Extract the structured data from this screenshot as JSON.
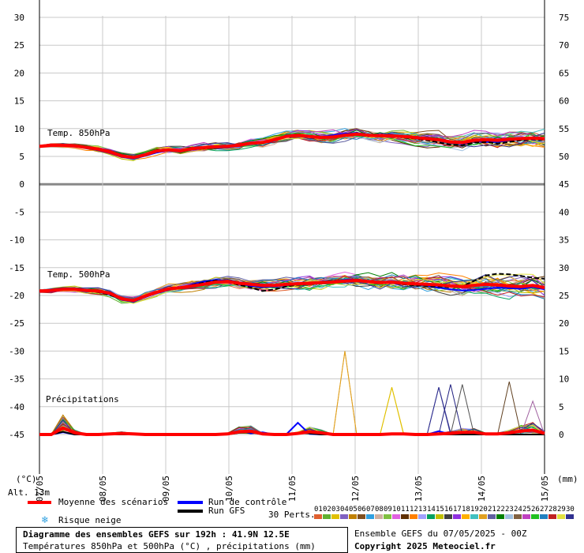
{
  "chart_data": {
    "type": "line",
    "title": "Diagramme des ensembles GEFS sur 192h : 41.9N 12.5E",
    "subtitle": "Températures 850hPa et 500hPa (°C) , précipitations (mm)",
    "left_unit": "(°C)",
    "right_unit": "(mm)",
    "altitude": "Alt. 13m",
    "left_ticks": [
      "30",
      "25",
      "20",
      "15",
      "10",
      "5",
      "0",
      "-5",
      "-10",
      "-15",
      "-20",
      "-25",
      "-30",
      "-35",
      "-40",
      "-45"
    ],
    "right_ticks": [
      "75",
      "70",
      "65",
      "60",
      "55",
      "50",
      "45",
      "40",
      "35",
      "30",
      "25",
      "20",
      "15",
      "10",
      "5",
      "0"
    ],
    "x_ticks": [
      "07/05",
      "08/05",
      "09/05",
      "10/05",
      "11/05",
      "12/05",
      "13/05",
      "14/05",
      "15/05"
    ],
    "panel_labels": {
      "t850": "Temp. 850hPa",
      "t500": "Temp. 500hPa",
      "precip": "Précipitations"
    },
    "t850_mean": [
      6.8,
      7.0,
      7.0,
      6.9,
      6.6,
      6.3,
      5.8,
      5.1,
      4.8,
      5.3,
      6.0,
      6.2,
      6.0,
      6.4,
      6.6,
      6.7,
      6.8,
      7.0,
      7.4,
      7.5,
      8.0,
      8.6,
      8.8,
      8.6,
      8.4,
      8.5,
      8.8,
      9.0,
      8.8,
      8.7,
      8.7,
      8.6,
      8.4,
      8.2,
      8.0,
      7.6,
      7.5,
      7.9,
      8.0,
      7.9,
      8.1,
      8.2,
      8.3,
      8.2
    ],
    "t850_control": [
      6.8,
      7.1,
      7.2,
      7.0,
      6.6,
      6.1,
      5.6,
      4.9,
      4.6,
      5.1,
      5.7,
      6.1,
      5.9,
      6.4,
      6.6,
      6.5,
      6.6,
      6.8,
      7.3,
      7.4,
      8.0,
      8.5,
      8.7,
      8.6,
      8.5,
      8.8,
      9.1,
      9.2,
      8.9,
      8.8,
      8.8,
      8.6,
      8.4,
      8.2,
      7.9,
      7.5,
      7.3,
      7.7,
      7.6,
      7.6,
      7.9,
      8.1,
      8.3,
      8.1
    ],
    "t850_gfs": [
      6.8,
      7.0,
      7.1,
      6.9,
      6.7,
      6.3,
      5.7,
      5.0,
      4.7,
      5.2,
      5.9,
      6.2,
      6.0,
      6.3,
      6.4,
      6.5,
      6.7,
      7.0,
      7.4,
      7.6,
      8.0,
      8.5,
      8.7,
      8.5,
      8.3,
      8.6,
      8.9,
      9.1,
      8.8,
      8.6,
      8.6,
      8.4,
      8.2,
      7.9,
      7.5,
      7.1,
      7.0,
      7.5,
      7.6,
      7.3,
      7.6,
      7.9,
      8.1,
      7.9
    ],
    "t500_mean": [
      -19.2,
      -19.1,
      -18.9,
      -18.9,
      -19.1,
      -19.2,
      -19.6,
      -20.6,
      -20.9,
      -20.1,
      -19.4,
      -18.8,
      -18.6,
      -18.3,
      -18.0,
      -17.6,
      -17.5,
      -17.8,
      -18.0,
      -18.2,
      -18.2,
      -18.0,
      -17.9,
      -17.8,
      -17.7,
      -17.6,
      -17.4,
      -17.3,
      -17.5,
      -17.7,
      -17.6,
      -17.8,
      -17.9,
      -18.0,
      -18.1,
      -18.3,
      -18.4,
      -18.2,
      -18.0,
      -18.1,
      -18.3,
      -18.4,
      -18.2,
      -18.6
    ],
    "t500_control": [
      -19.2,
      -19.3,
      -19.0,
      -18.8,
      -19.0,
      -19.3,
      -19.8,
      -20.8,
      -21.1,
      -20.3,
      -19.6,
      -19.0,
      -18.7,
      -18.0,
      -17.5,
      -17.2,
      -17.4,
      -17.9,
      -18.3,
      -18.5,
      -18.4,
      -18.2,
      -18.0,
      -17.9,
      -17.8,
      -17.5,
      -17.2,
      -17.1,
      -17.4,
      -17.6,
      -17.5,
      -17.8,
      -18.0,
      -18.3,
      -18.6,
      -18.9,
      -19.1,
      -19.0,
      -18.8,
      -18.6,
      -18.7,
      -18.8,
      -18.5,
      -18.9
    ],
    "t500_gfs": [
      -19.2,
      -19.2,
      -19.0,
      -18.9,
      -19.2,
      -19.4,
      -19.9,
      -20.7,
      -21.0,
      -20.2,
      -19.5,
      -18.9,
      -18.7,
      -18.1,
      -17.7,
      -17.3,
      -17.6,
      -18.1,
      -18.6,
      -19.2,
      -18.9,
      -18.4,
      -18.1,
      -17.9,
      -17.7,
      -17.5,
      -17.3,
      -17.2,
      -17.5,
      -17.8,
      -17.7,
      -18.0,
      -18.2,
      -18.3,
      -18.4,
      -18.5,
      -18.3,
      -17.4,
      -16.4,
      -16.1,
      -16.2,
      -16.5,
      -16.8,
      -17.0
    ],
    "precip_mean": [
      0.0,
      0.0,
      1.2,
      0.3,
      0.0,
      0.0,
      0.1,
      0.2,
      0.1,
      0.0,
      0.0,
      0.0,
      0.0,
      0.0,
      0.0,
      0.0,
      0.1,
      0.5,
      0.6,
      0.1,
      0.0,
      0.0,
      0.2,
      0.5,
      0.3,
      0.0,
      0.0,
      0.0,
      0.0,
      0.0,
      0.1,
      0.1,
      0.0,
      0.0,
      0.1,
      0.2,
      0.4,
      0.4,
      0.1,
      0.1,
      0.3,
      0.6,
      0.8,
      0.2
    ],
    "precip_control": [
      0.0,
      0.0,
      0.4,
      0.0,
      0.0,
      0.0,
      0.0,
      0.0,
      0.0,
      0.0,
      0.0,
      0.0,
      0.0,
      0.0,
      0.0,
      0.0,
      0.0,
      0.6,
      0.2,
      0.4,
      0.0,
      0.0,
      2.1,
      0.1,
      0.0,
      0.0,
      0.0,
      0.0,
      0.0,
      0.0,
      0.0,
      0.0,
      0.0,
      0.0,
      0.6,
      0.0,
      0.0,
      0.0,
      0.0,
      0.0,
      0.0,
      0.0,
      0.0,
      0.0
    ],
    "precip_gfs": [
      0.0,
      0.0,
      0.5,
      0.0,
      0.0,
      0.0,
      0.0,
      0.0,
      0.0,
      0.0,
      0.0,
      0.0,
      0.0,
      0.0,
      0.0,
      0.0,
      0.0,
      0.3,
      0.4,
      0.0,
      0.0,
      0.0,
      0.3,
      0.2,
      0.0,
      0.0,
      0.0,
      0.0,
      0.0,
      0.0,
      0.0,
      0.0,
      0.0,
      0.0,
      0.0,
      0.0,
      0.0,
      0.0,
      0.0,
      0.0,
      0.0,
      0.0,
      0.0,
      0.0
    ],
    "precip_spikes": [
      {
        "step": 2,
        "value": 3.5,
        "color": "#c08000"
      },
      {
        "step": 26,
        "value": 15.0,
        "color": "#e0a020"
      },
      {
        "step": 30,
        "value": 8.5,
        "color": "#e0c000"
      },
      {
        "step": 34,
        "value": 8.5,
        "color": "#303090"
      },
      {
        "step": 35,
        "value": 9.0,
        "color": "#202080"
      },
      {
        "step": 36,
        "value": 9.0,
        "color": "#505050"
      },
      {
        "step": 40,
        "value": 9.5,
        "color": "#604020"
      },
      {
        "step": 42,
        "value": 6.0,
        "color": "#a060a0"
      }
    ],
    "members": [
      "01",
      "02",
      "03",
      "04",
      "05",
      "06",
      "07",
      "08",
      "09",
      "10",
      "11",
      "12",
      "13",
      "14",
      "15",
      "16",
      "17",
      "18",
      "19",
      "20",
      "21",
      "22",
      "23",
      "24",
      "25",
      "26",
      "27",
      "28",
      "29",
      "30"
    ],
    "member_colors": [
      "#e06030",
      "#60b030",
      "#e0c000",
      "#8060c0",
      "#c08000",
      "#7f4f1f",
      "#30a0e0",
      "#d0b0a0",
      "#80c040",
      "#e060e0",
      "#603000",
      "#ff8000",
      "#a0a0ff",
      "#00a060",
      "#c0c000",
      "#404040",
      "#9030e0",
      "#ffb000",
      "#40c0c0",
      "#e0a020",
      "#6060a0",
      "#008000",
      "#a0c0e0",
      "#806040",
      "#c040c0",
      "#20c020",
      "#2080c0",
      "#c02020",
      "#e0e040",
      "#303090"
    ]
  },
  "legend": {
    "mean_label": "Moyenne des scénarios",
    "control_label": "Run de contrôle",
    "gfs_label": "Run GFS",
    "snow_label": "Risque neige",
    "perts_label": "30 Perts.",
    "run_info": "Ensemble GEFS du 07/05/2025 - 00Z",
    "copyright": "Copyright 2025 Meteociel.fr",
    "mean_color": "#ff0000",
    "control_color": "#0000ff",
    "gfs_color": "#000000"
  }
}
